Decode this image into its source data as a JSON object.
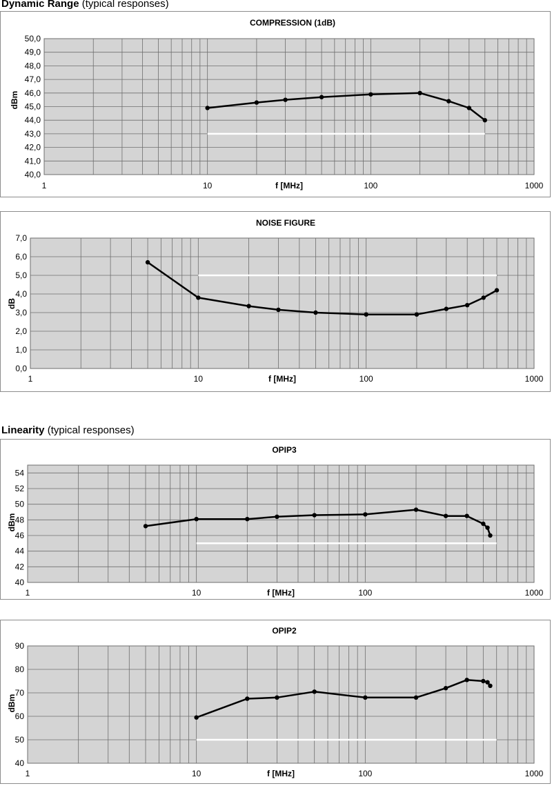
{
  "sections": {
    "dynamic": {
      "title_bold": "Dynamic Range",
      "title_rest": " (typical responses)"
    },
    "linearity": {
      "title_bold": "Linearity",
      "title_rest": " (typical responses)"
    }
  },
  "chart_data": [
    {
      "type": "line",
      "title": "COMPRESSION (1dB)",
      "xlabel": "f [MHz]",
      "ylabel": "dBm",
      "xscale": "log",
      "xlim": [
        1,
        1000
      ],
      "ylim": [
        40,
        50
      ],
      "y_ticks": [
        "40,0",
        "41,0",
        "42,0",
        "43,0",
        "44,0",
        "45,0",
        "46,0",
        "47,0",
        "48,0",
        "49,0",
        "50,0"
      ],
      "x_ticks": [
        "1",
        "10",
        "100",
        "1000"
      ],
      "grid": true,
      "series": [
        {
          "color": "#000000",
          "x": [
            10,
            20,
            30,
            50,
            100,
            200,
            300,
            400,
            500
          ],
          "y": [
            44.9,
            45.3,
            45.5,
            45.7,
            45.9,
            46.0,
            45.4,
            44.9,
            44.0
          ]
        },
        {
          "color": "#ffffff",
          "x": [
            10,
            500
          ],
          "y": [
            43.0,
            43.0
          ]
        }
      ]
    },
    {
      "type": "line",
      "title": "NOISE FIGURE",
      "xlabel": "f [MHz]",
      "ylabel": "dB",
      "xscale": "log",
      "xlim": [
        1,
        1000
      ],
      "ylim": [
        0,
        7
      ],
      "y_ticks": [
        "0,0",
        "1,0",
        "2,0",
        "3,0",
        "4,0",
        "5,0",
        "6,0",
        "7,0"
      ],
      "x_ticks": [
        "1",
        "10",
        "100",
        "1000"
      ],
      "grid": true,
      "series": [
        {
          "color": "#000000",
          "x": [
            5,
            10,
            20,
            30,
            50,
            100,
            200,
            300,
            400,
            500,
            600
          ],
          "y": [
            5.7,
            3.8,
            3.35,
            3.15,
            3.0,
            2.9,
            2.9,
            3.2,
            3.4,
            3.8,
            4.2
          ]
        },
        {
          "color": "#ffffff",
          "x": [
            10,
            600
          ],
          "y": [
            5.0,
            5.0
          ]
        }
      ]
    },
    {
      "type": "line",
      "title": "OPIP3",
      "xlabel": "f [MHz]",
      "ylabel": "dBm",
      "xscale": "log",
      "xlim": [
        1,
        1000
      ],
      "ylim": [
        40,
        55
      ],
      "y_ticks": [
        "40",
        "42",
        "44",
        "46",
        "48",
        "50",
        "52",
        "54"
      ],
      "x_ticks": [
        "1",
        "10",
        "100",
        "1000"
      ],
      "grid": true,
      "series": [
        {
          "color": "#000000",
          "x": [
            5,
            10,
            20,
            30,
            50,
            100,
            200,
            300,
            400,
            500,
            530,
            550
          ],
          "y": [
            47.2,
            48.1,
            48.1,
            48.4,
            48.6,
            48.7,
            49.3,
            48.5,
            48.5,
            47.5,
            47.0,
            46.0
          ]
        },
        {
          "color": "#ffffff",
          "x": [
            10,
            600
          ],
          "y": [
            45.0,
            45.0
          ]
        }
      ]
    },
    {
      "type": "line",
      "title": "OPIP2",
      "xlabel": "f [MHz]",
      "ylabel": "dBm",
      "xscale": "log",
      "xlim": [
        1,
        1000
      ],
      "ylim": [
        40,
        90
      ],
      "y_ticks": [
        "40",
        "50",
        "60",
        "70",
        "80",
        "90"
      ],
      "x_ticks": [
        "1",
        "10",
        "100",
        "1000"
      ],
      "grid": true,
      "series": [
        {
          "color": "#000000",
          "x": [
            10,
            20,
            30,
            50,
            100,
            200,
            300,
            400,
            500,
            530,
            550
          ],
          "y": [
            59.5,
            67.5,
            68.0,
            70.5,
            68.0,
            68.0,
            72.0,
            75.5,
            75.0,
            74.5,
            73.0
          ]
        },
        {
          "color": "#ffffff",
          "x": [
            10,
            600
          ],
          "y": [
            50.0,
            50.0
          ]
        }
      ]
    }
  ]
}
